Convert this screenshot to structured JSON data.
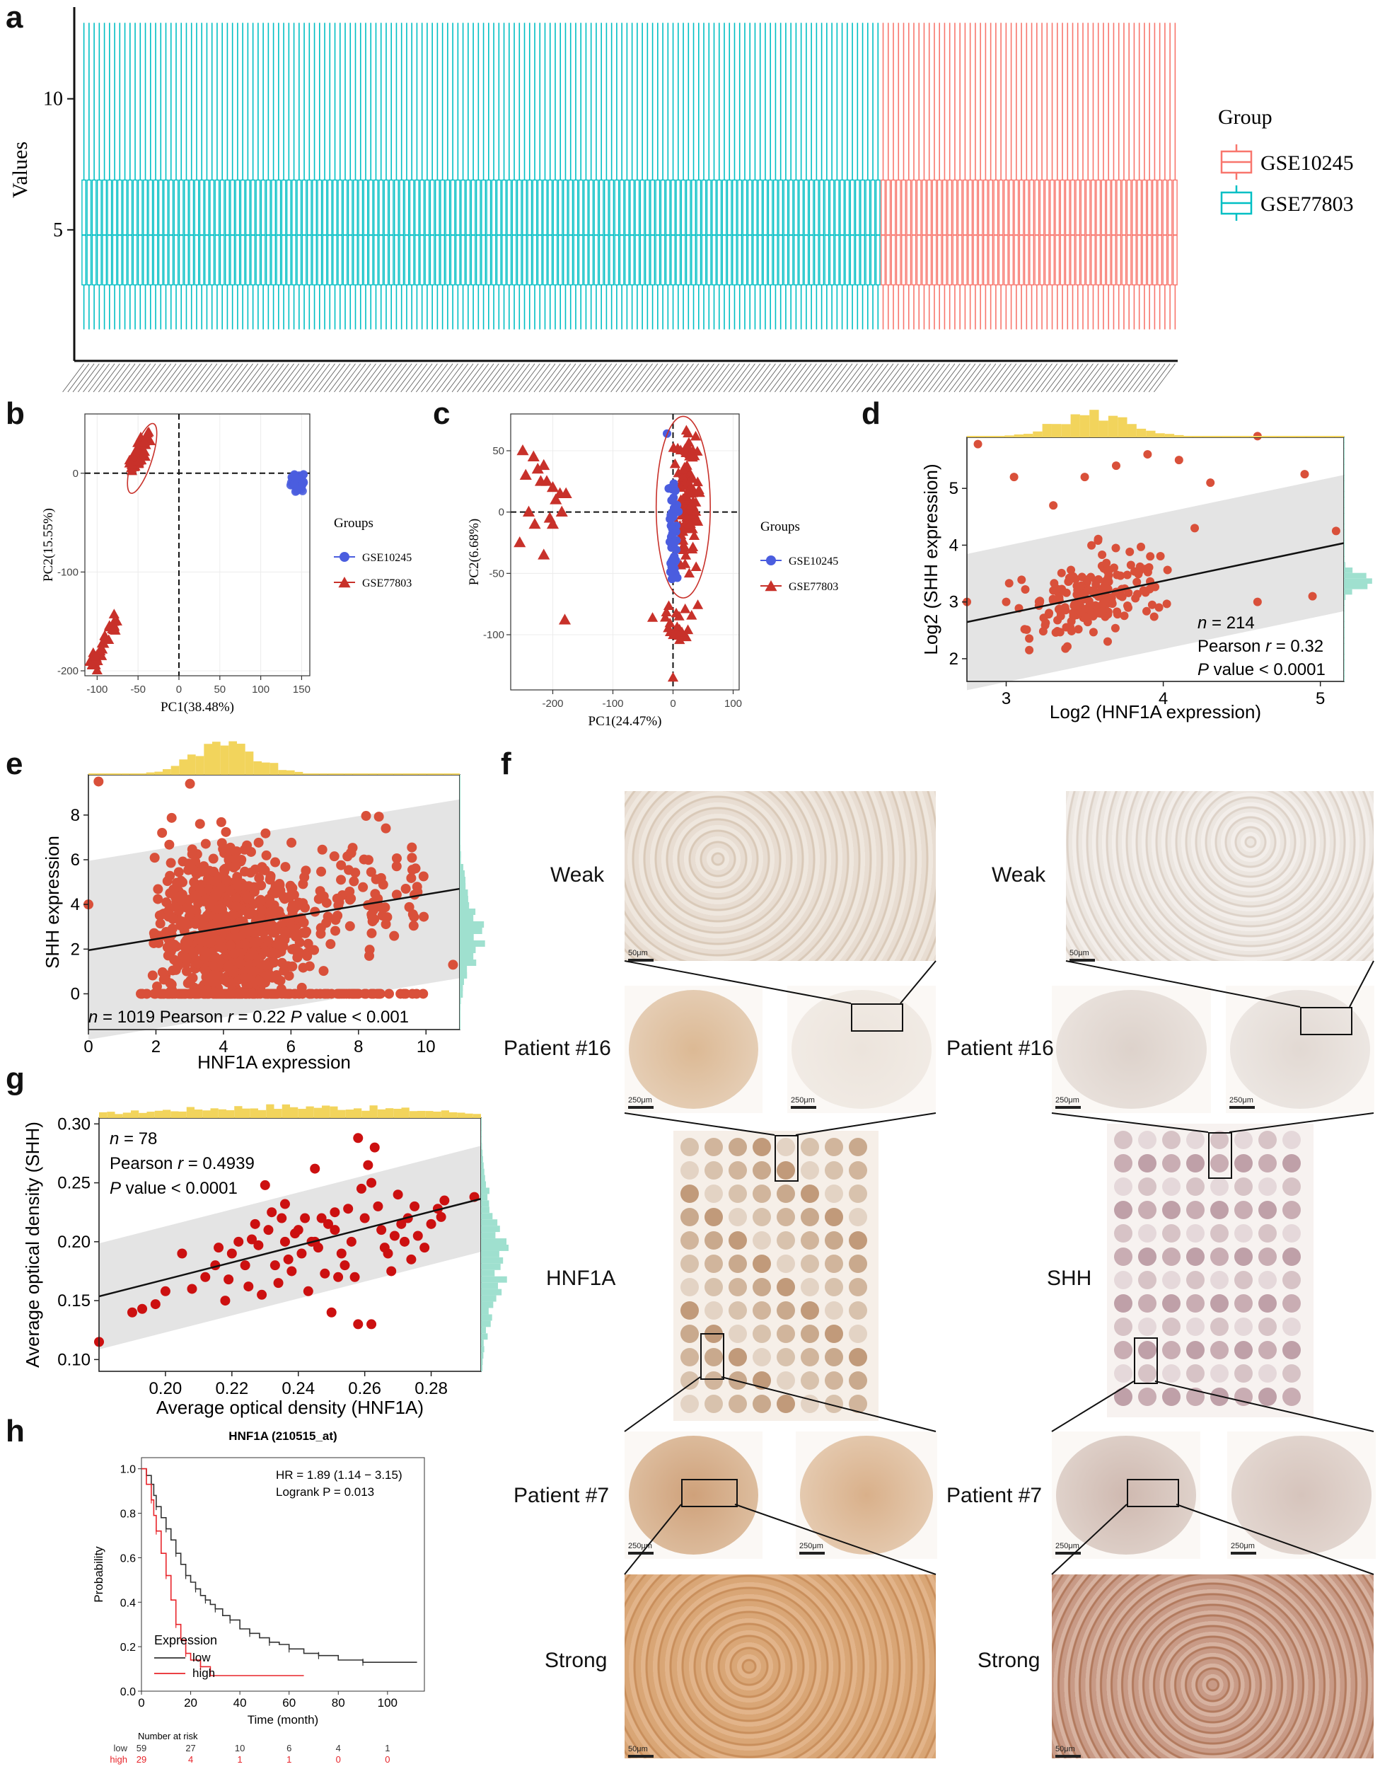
{
  "panel_labels": {
    "a": "a",
    "b": "b",
    "c": "c",
    "d": "d",
    "e": "e",
    "f": "f",
    "g": "g",
    "h": "h"
  },
  "colors": {
    "red": "#f8766d",
    "teal": "#00bfc4",
    "pca_red": "#c8312a",
    "pca_blue": "#4a5ddf",
    "scatter": "#d9503a",
    "scatter_g": "#cc1010",
    "hist_yellow": "#f2d45c",
    "hist_teal": "#9fe0cf",
    "km_low": "#333333",
    "km_high": "#e8242a"
  },
  "chart_data": [
    {
      "id": "a",
      "type": "box",
      "ylabel": "Values",
      "ylim": [
        0,
        13.5
      ],
      "yticks": [
        5,
        10
      ],
      "legend_title": "Group",
      "legend_position": "right",
      "groups": [
        {
          "name": "GSE10245",
          "n_samples": 58,
          "whisker_low": 1.2,
          "q1": 2.9,
          "median": 4.8,
          "q3": 6.9,
          "whisker_high": 12.9
        },
        {
          "name": "GSE77803",
          "n_samples": 156,
          "whisker_low": 1.2,
          "q1": 2.9,
          "median": 4.8,
          "q3": 6.9,
          "whisker_high": 12.9
        }
      ],
      "order_on_axis": [
        "GSE77803",
        "GSE10245"
      ]
    },
    {
      "id": "b",
      "type": "scatter",
      "xlabel": "PC1(38.48%)",
      "ylabel": "PC2(15.55%)",
      "xlim": [
        -115,
        160
      ],
      "ylim": [
        -205,
        60
      ],
      "xticks": [
        -100,
        -50,
        0,
        50,
        100,
        150
      ],
      "yticks": [
        0,
        -100,
        -200
      ],
      "legend_title": "Groups",
      "series": [
        {
          "name": "GSE10245",
          "marker": "circle",
          "cluster": {
            "x": 145,
            "y": -10,
            "sx": 4,
            "sy": 4,
            "n": 58
          }
        },
        {
          "name": "GSE77803",
          "marker": "triangle",
          "clusters": [
            {
              "line": [
                [
                  -60,
                  5
                ],
                [
                  -35,
                  38
                ]
              ],
              "n": 45
            },
            {
              "line": [
                [
                  -105,
                  -195
                ],
                [
                  -75,
                  -145
                ]
              ],
              "n": 40
            }
          ]
        }
      ],
      "ellipse": {
        "cx": -45,
        "cy": 15,
        "rx": 12,
        "ry": 37
      }
    },
    {
      "id": "c",
      "type": "scatter",
      "xlabel": "PC1(24.47%)",
      "ylabel": "PC2(6.68%)",
      "xlim": [
        -270,
        110
      ],
      "ylim": [
        -145,
        80
      ],
      "xticks": [
        -200,
        -100,
        0,
        100
      ],
      "yticks": [
        50,
        0,
        -50,
        -100
      ],
      "legend_title": "Groups",
      "series": [
        {
          "name": "GSE10245",
          "marker": "circle"
        },
        {
          "name": "GSE77803",
          "marker": "triangle"
        }
      ]
    },
    {
      "id": "d",
      "type": "scatter",
      "xlabel": "Log2 (HNF1A expression)",
      "ylabel": "Log2 (SHH expression)",
      "xlim": [
        2.75,
        5.15
      ],
      "ylim": [
        1.6,
        5.9
      ],
      "xticks": [
        3,
        4,
        5
      ],
      "yticks": [
        2,
        3,
        4,
        5
      ],
      "fit": {
        "intercept": 1.05,
        "slope": 0.58
      },
      "stats": {
        "n": "214",
        "pearson": "0.32",
        "p": "< 0.0001"
      }
    },
    {
      "id": "e",
      "type": "scatter",
      "xlabel": "HNF1A expression",
      "ylabel": "SHH expression",
      "xlim": [
        0,
        11
      ],
      "ylim": [
        -1.6,
        9.8
      ],
      "xticks": [
        0,
        2,
        4,
        6,
        8,
        10
      ],
      "yticks": [
        0,
        2,
        4,
        6,
        8
      ],
      "fit": {
        "intercept": 1.95,
        "slope": 0.25
      },
      "stats": {
        "n": "1019",
        "pearson": "0.22",
        "p": "< 0.001"
      }
    },
    {
      "id": "g",
      "type": "scatter",
      "xlabel": "Average optical density (HNF1A)",
      "ylabel": "Average optical density (SHH)",
      "xlim": [
        0.18,
        0.295
      ],
      "ylim": [
        0.09,
        0.305
      ],
      "xticks": [
        0.2,
        0.22,
        0.24,
        0.26,
        0.28
      ],
      "xtick_labels": [
        "0.20",
        "0.22",
        "0.24",
        "0.26",
        "0.28"
      ],
      "yticks": [
        0.1,
        0.15,
        0.2,
        0.25,
        0.3
      ],
      "ytick_labels": [
        "0.10",
        "0.15",
        "0.20",
        "0.25",
        "0.30"
      ],
      "fit": {
        "intercept": 0.024,
        "slope": 0.72
      },
      "stats": {
        "n": "78",
        "pearson": "0.4939",
        "p": "< 0.0001"
      },
      "points": [
        [
          0.18,
          0.115
        ],
        [
          0.19,
          0.14
        ],
        [
          0.193,
          0.143
        ],
        [
          0.197,
          0.147
        ],
        [
          0.2,
          0.158
        ],
        [
          0.205,
          0.19
        ],
        [
          0.208,
          0.16
        ],
        [
          0.212,
          0.17
        ],
        [
          0.215,
          0.18
        ],
        [
          0.216,
          0.195
        ],
        [
          0.218,
          0.15
        ],
        [
          0.219,
          0.168
        ],
        [
          0.22,
          0.19
        ],
        [
          0.222,
          0.2
        ],
        [
          0.224,
          0.18
        ],
        [
          0.225,
          0.162
        ],
        [
          0.227,
          0.215
        ],
        [
          0.228,
          0.197
        ],
        [
          0.23,
          0.248
        ],
        [
          0.231,
          0.21
        ],
        [
          0.232,
          0.225
        ],
        [
          0.233,
          0.18
        ],
        [
          0.234,
          0.165
        ],
        [
          0.235,
          0.22
        ],
        [
          0.236,
          0.2
        ],
        [
          0.237,
          0.185
        ],
        [
          0.238,
          0.175
        ],
        [
          0.239,
          0.207
        ],
        [
          0.24,
          0.21
        ],
        [
          0.241,
          0.19
        ],
        [
          0.242,
          0.22
        ],
        [
          0.243,
          0.158
        ],
        [
          0.244,
          0.2
        ],
        [
          0.245,
          0.2
        ],
        [
          0.246,
          0.195
        ],
        [
          0.247,
          0.22
        ],
        [
          0.248,
          0.173
        ],
        [
          0.249,
          0.215
        ],
        [
          0.25,
          0.14
        ],
        [
          0.251,
          0.21
        ],
        [
          0.252,
          0.17
        ],
        [
          0.253,
          0.19
        ],
        [
          0.254,
          0.18
        ],
        [
          0.255,
          0.228
        ],
        [
          0.256,
          0.2
        ],
        [
          0.257,
          0.17
        ],
        [
          0.258,
          0.13
        ],
        [
          0.258,
          0.288
        ],
        [
          0.259,
          0.245
        ],
        [
          0.26,
          0.22
        ],
        [
          0.261,
          0.265
        ],
        [
          0.262,
          0.25
        ],
        [
          0.262,
          0.13
        ],
        [
          0.263,
          0.28
        ],
        [
          0.264,
          0.23
        ],
        [
          0.265,
          0.21
        ],
        [
          0.266,
          0.195
        ],
        [
          0.267,
          0.19
        ],
        [
          0.268,
          0.175
        ],
        [
          0.269,
          0.205
        ],
        [
          0.27,
          0.24
        ],
        [
          0.271,
          0.215
        ],
        [
          0.272,
          0.2
        ],
        [
          0.273,
          0.22
        ],
        [
          0.274,
          0.185
        ],
        [
          0.275,
          0.23
        ],
        [
          0.276,
          0.205
        ],
        [
          0.278,
          0.195
        ],
        [
          0.28,
          0.215
        ],
        [
          0.282,
          0.228
        ],
        [
          0.284,
          0.235
        ],
        [
          0.245,
          0.262
        ],
        [
          0.229,
          0.155
        ],
        [
          0.236,
          0.232
        ],
        [
          0.251,
          0.225
        ],
        [
          0.226,
          0.202
        ],
        [
          0.283,
          0.221
        ],
        [
          0.293,
          0.238
        ]
      ]
    },
    {
      "id": "h",
      "type": "line",
      "title": "HNF1A (210515_at)",
      "xlabel": "Time (month)",
      "ylabel": "Probability",
      "xlim": [
        0,
        115
      ],
      "ylim": [
        0,
        1.05
      ],
      "xticks": [
        0,
        20,
        40,
        60,
        80,
        100
      ],
      "yticks": [
        0.0,
        0.2,
        0.4,
        0.6,
        0.8,
        1.0
      ],
      "ytick_labels": [
        "0.0",
        "0.2",
        "0.4",
        "0.6",
        "0.8",
        "1.0"
      ],
      "legend_title": "Expression",
      "stats": {
        "hr": "HR = 1.89 (1.14 − 3.15)",
        "logrank": "Logrank P = 0.013"
      },
      "series": [
        {
          "name": "low",
          "steps": [
            [
              0,
              1.0
            ],
            [
              2,
              0.97
            ],
            [
              4,
              0.93
            ],
            [
              5,
              0.88
            ],
            [
              6,
              0.83
            ],
            [
              8,
              0.78
            ],
            [
              10,
              0.73
            ],
            [
              12,
              0.68
            ],
            [
              14,
              0.62
            ],
            [
              16,
              0.57
            ],
            [
              18,
              0.52
            ],
            [
              20,
              0.49
            ],
            [
              22,
              0.46
            ],
            [
              24,
              0.43
            ],
            [
              26,
              0.41
            ],
            [
              28,
              0.39
            ],
            [
              30,
              0.37
            ],
            [
              33,
              0.34
            ],
            [
              36,
              0.32
            ],
            [
              40,
              0.28
            ],
            [
              44,
              0.26
            ],
            [
              48,
              0.24
            ],
            [
              52,
              0.22
            ],
            [
              56,
              0.21
            ],
            [
              60,
              0.19
            ],
            [
              66,
              0.17
            ],
            [
              72,
              0.16
            ],
            [
              80,
              0.14
            ],
            [
              90,
              0.13
            ],
            [
              112,
              0.13
            ],
            [
              112,
              0.0
            ]
          ]
        },
        {
          "name": "high",
          "steps": [
            [
              0,
              1.0
            ],
            [
              2,
              0.93
            ],
            [
              4,
              0.86
            ],
            [
              5,
              0.79
            ],
            [
              6,
              0.72
            ],
            [
              8,
              0.62
            ],
            [
              10,
              0.52
            ],
            [
              12,
              0.41
            ],
            [
              14,
              0.3
            ],
            [
              16,
              0.23
            ],
            [
              18,
              0.17
            ],
            [
              20,
              0.14
            ],
            [
              24,
              0.11
            ],
            [
              28,
              0.07
            ],
            [
              66,
              0.07
            ],
            [
              66,
              0.0
            ]
          ]
        }
      ],
      "risk_table": {
        "title": "Number at risk",
        "times": [
          0,
          20,
          40,
          60,
          80,
          100
        ],
        "rows": [
          {
            "name": "low",
            "values": [
              "59",
              "27",
              "10",
              "6",
              "4",
              "1"
            ]
          },
          {
            "name": "high",
            "values": [
              "29",
              "4",
              "1",
              "1",
              "0",
              "0"
            ]
          }
        ]
      }
    }
  ],
  "panel_f": {
    "weak_label": "Weak",
    "strong_label": "Strong",
    "patient16": "Patient #16",
    "patient7": "Patient #7",
    "left_marker": "HNF1A",
    "right_marker": "SHH",
    "scale_50": "50μm",
    "scale_250": "250μm"
  }
}
